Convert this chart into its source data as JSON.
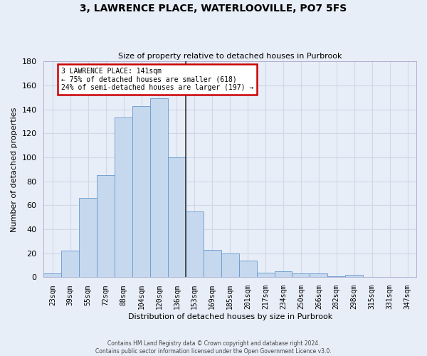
{
  "title": "3, LAWRENCE PLACE, WATERLOOVILLE, PO7 5FS",
  "subtitle": "Size of property relative to detached houses in Purbrook",
  "xlabel": "Distribution of detached houses by size in Purbrook",
  "ylabel": "Number of detached properties",
  "categories": [
    "23sqm",
    "39sqm",
    "55sqm",
    "72sqm",
    "88sqm",
    "104sqm",
    "120sqm",
    "136sqm",
    "153sqm",
    "169sqm",
    "185sqm",
    "201sqm",
    "217sqm",
    "234sqm",
    "250sqm",
    "266sqm",
    "282sqm",
    "298sqm",
    "315sqm",
    "331sqm",
    "347sqm"
  ],
  "bar_heights": [
    3,
    22,
    66,
    85,
    133,
    143,
    149,
    100,
    55,
    23,
    20,
    14,
    4,
    5,
    3,
    3,
    1,
    2,
    0,
    0,
    0
  ],
  "bar_color": "#c5d8ee",
  "bar_edge_color": "#6699cc",
  "vline_index": 7.0,
  "annotation_text": "3 LAWRENCE PLACE: 141sqm\n← 75% of detached houses are smaller (618)\n24% of semi-detached houses are larger (197) →",
  "annotation_box_facecolor": "#ffffff",
  "annotation_box_edgecolor": "#cc0000",
  "vline_color": "#333333",
  "grid_color": "#d0d8e8",
  "bg_color": "#e8eef8",
  "footer1": "Contains HM Land Registry data © Crown copyright and database right 2024.",
  "footer2": "Contains public sector information licensed under the Open Government Licence v3.0.",
  "ylim": [
    0,
    180
  ],
  "yticks": [
    0,
    20,
    40,
    60,
    80,
    100,
    120,
    140,
    160,
    180
  ]
}
